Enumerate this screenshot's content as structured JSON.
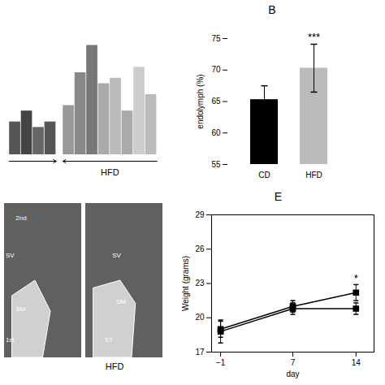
{
  "chart_data": [
    {
      "type": "bar",
      "categories": [
        null,
        null,
        null,
        null,
        null,
        null,
        null,
        null,
        null,
        null,
        null,
        null
      ],
      "values": [
        63,
        65,
        62,
        63,
        66,
        72,
        77,
        70,
        71,
        65,
        73,
        68
      ],
      "colors": [
        "#555555",
        "#444444",
        "#666666",
        "#555555",
        "#999999",
        "#888888",
        "#777777",
        "#aaaaaa",
        "#bbbbbb",
        "#aaaaaa",
        "#cccccc",
        "#bbbbbb"
      ],
      "ylim": [
        57,
        83
      ],
      "tick_labels": false,
      "annotations": [
        "HFD"
      ]
    },
    {
      "type": "bar",
      "title": "B",
      "categories": [
        "CD",
        "HFD"
      ],
      "values": [
        65.3,
        70.3
      ],
      "errors": [
        2.2,
        3.8
      ],
      "colors": [
        "#000000",
        "#bbbbbb"
      ],
      "ylabel": "endolymph (%)",
      "ylim": [
        55,
        75
      ],
      "yticks": [
        55,
        60,
        65,
        70,
        75
      ],
      "annotations": [
        {
          "text": "***",
          "x": "HFD"
        }
      ]
    },
    {
      "type": "image",
      "annotations": [
        "2nd",
        "SV",
        "SM",
        "1st"
      ]
    },
    {
      "type": "image",
      "annotations": [
        "SV",
        "SM",
        "ST"
      ],
      "xlabel": "HFD"
    },
    {
      "type": "line",
      "title": "E",
      "x": [
        -1,
        7,
        14
      ],
      "series": [
        {
          "color": "black",
          "marker": "square",
          "values": [
            19.0,
            21.0,
            22.2
          ],
          "errors": [
            0.7,
            0.5,
            0.7
          ]
        },
        {
          "color": "black",
          "marker": "square",
          "values": [
            18.8,
            20.8,
            20.8
          ],
          "errors": [
            1.0,
            0.5,
            0.5
          ]
        }
      ],
      "xlabel": "day",
      "ylabel": "Weight (grams)",
      "xlim": [
        -2,
        16
      ],
      "ylim": [
        17,
        29
      ],
      "xticks": [
        -1,
        7,
        14
      ],
      "yticks": [
        17,
        20,
        23,
        26,
        29
      ],
      "annotations": [
        {
          "text": "*",
          "x": 14,
          "y": 22.9
        }
      ]
    }
  ]
}
